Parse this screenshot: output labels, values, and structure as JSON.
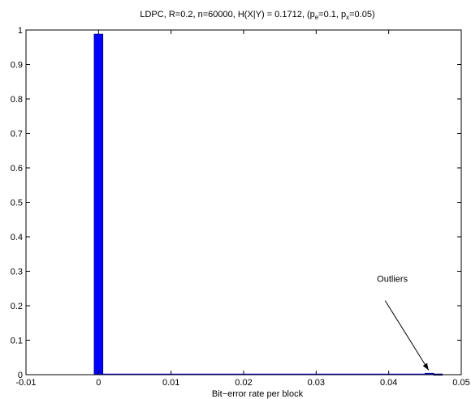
{
  "chart_data": {
    "type": "bar",
    "title": {
      "prefix": "LDPC, R=0.2, n=60000, H(X|Y) = 0.1712, (p",
      "sub1": "e",
      "mid": "=0.1, p",
      "sub2": "x",
      "suffix": "=0.05)"
    },
    "xlabel": "Bit−error rate per block",
    "ylabel": "",
    "xlim": [
      -0.01,
      0.05
    ],
    "ylim": [
      0,
      1
    ],
    "bar_width": 0.0012,
    "color": "#0000ff",
    "bars": [
      {
        "x": 0.0,
        "y": 0.988
      },
      {
        "x": 0.0456,
        "y": 0.004
      },
      {
        "x": 0.0468,
        "y": 0.002
      }
    ],
    "baseline_from": 0.0,
    "baseline_to": 0.0456,
    "xticks": [
      {
        "value": -0.01,
        "label": "-0.01"
      },
      {
        "value": 0.0,
        "label": "0"
      },
      {
        "value": 0.01,
        "label": "0.01"
      },
      {
        "value": 0.02,
        "label": "0.02"
      },
      {
        "value": 0.03,
        "label": "0.03"
      },
      {
        "value": 0.04,
        "label": "0.04"
      },
      {
        "value": 0.05,
        "label": "0.05"
      }
    ],
    "yticks": [
      {
        "value": 0,
        "label": "0"
      },
      {
        "value": 0.1,
        "label": "0.1"
      },
      {
        "value": 0.2,
        "label": "0.2"
      },
      {
        "value": 0.3,
        "label": "0.3"
      },
      {
        "value": 0.4,
        "label": "0.4"
      },
      {
        "value": 0.5,
        "label": "0.5"
      },
      {
        "value": 0.6,
        "label": "0.6"
      },
      {
        "value": 0.7,
        "label": "0.7"
      },
      {
        "value": 0.8,
        "label": "0.8"
      },
      {
        "value": 0.9,
        "label": "0.9"
      },
      {
        "value": 1,
        "label": "1"
      }
    ],
    "grid": false,
    "annotation": {
      "text": "Outliers",
      "text_x": 0.0405,
      "text_y": 0.27,
      "arrow_from_x": 0.0395,
      "arrow_from_y": 0.215,
      "arrow_to_x": 0.0455,
      "arrow_to_y": 0.013
    }
  }
}
